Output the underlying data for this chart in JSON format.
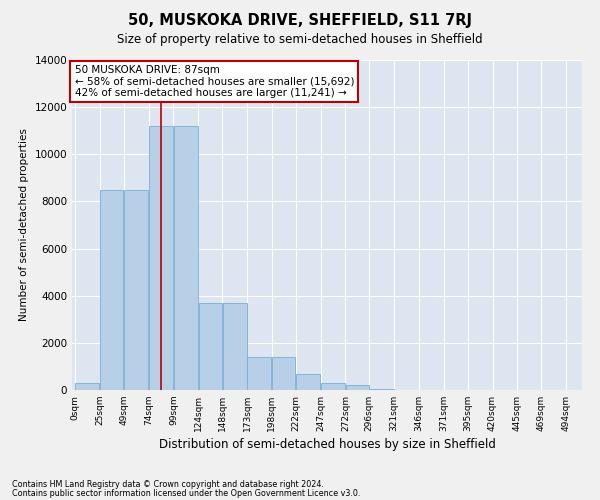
{
  "title": "50, MUSKOKA DRIVE, SHEFFIELD, S11 7RJ",
  "subtitle": "Size of property relative to semi-detached houses in Sheffield",
  "xlabel": "Distribution of semi-detached houses by size in Sheffield",
  "ylabel": "Number of semi-detached properties",
  "footnote1": "Contains HM Land Registry data © Crown copyright and database right 2024.",
  "footnote2": "Contains public sector information licensed under the Open Government Licence v3.0.",
  "annotation_title": "50 MUSKOKA DRIVE: 87sqm",
  "annotation_line1": "← 58% of semi-detached houses are smaller (15,692)",
  "annotation_line2": "42% of semi-detached houses are larger (11,241) →",
  "property_size": 87,
  "bar_left_edges": [
    0,
    25,
    49,
    74,
    99,
    124,
    148,
    173,
    198,
    222,
    247,
    272,
    296,
    321,
    346,
    371,
    395,
    420,
    445,
    469
  ],
  "bar_widths": [
    25,
    24,
    25,
    25,
    25,
    24,
    25,
    25,
    24,
    25,
    25,
    24,
    25,
    25,
    25,
    24,
    25,
    25,
    24,
    25
  ],
  "bar_heights": [
    300,
    8500,
    8500,
    11200,
    11200,
    3700,
    3700,
    1400,
    1400,
    700,
    300,
    200,
    50,
    0,
    0,
    0,
    0,
    0,
    0,
    0
  ],
  "tick_labels": [
    "0sqm",
    "25sqm",
    "49sqm",
    "74sqm",
    "99sqm",
    "124sqm",
    "148sqm",
    "173sqm",
    "198sqm",
    "222sqm",
    "247sqm",
    "272sqm",
    "296sqm",
    "321sqm",
    "346sqm",
    "371sqm",
    "395sqm",
    "420sqm",
    "445sqm",
    "469sqm",
    "494sqm"
  ],
  "tick_positions": [
    0,
    25,
    49,
    74,
    99,
    124,
    148,
    173,
    198,
    222,
    247,
    272,
    296,
    321,
    346,
    371,
    395,
    420,
    445,
    469,
    494
  ],
  "ylim": [
    0,
    14000
  ],
  "xlim_min": -3,
  "xlim_max": 510,
  "bar_color": "#b8cfe8",
  "bar_edge_color": "#7aaed4",
  "vline_color": "#bb0000",
  "bg_color": "#dde6f0",
  "grid_color": "#ffffff",
  "fig_bg": "#f0f0f0",
  "annotation_box_color": "#ffffff",
  "annotation_box_edge": "#bb0000",
  "title_fontsize": 10.5,
  "subtitle_fontsize": 8.5,
  "xlabel_fontsize": 8.5,
  "ylabel_fontsize": 7.5,
  "tick_fontsize": 6.5,
  "ytick_fontsize": 7.5,
  "annot_fontsize": 7.5,
  "footnote_fontsize": 5.8
}
